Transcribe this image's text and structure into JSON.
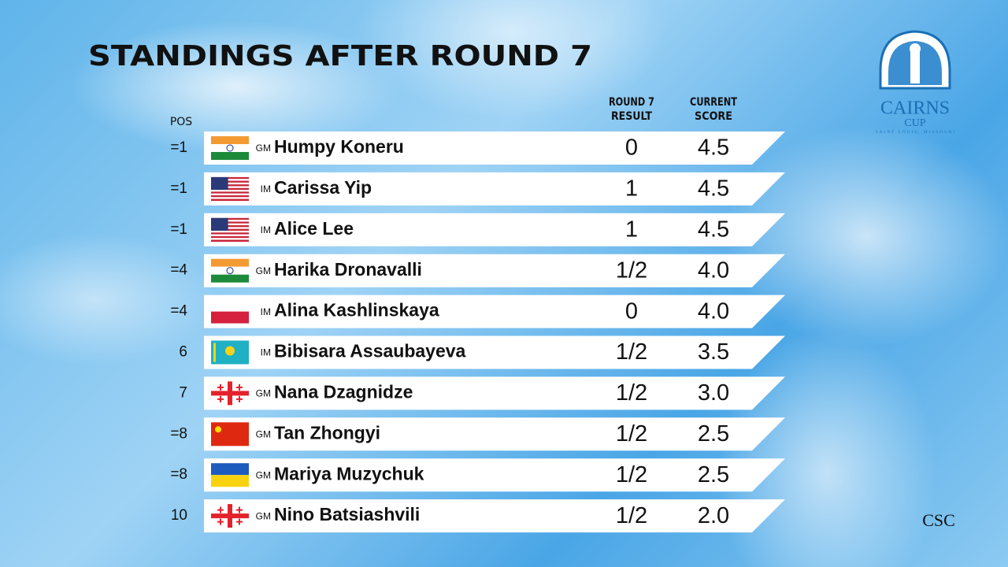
{
  "title": "STANDINGS AFTER ROUND 7",
  "columns": {
    "pos": "POS",
    "result": [
      "ROUND 7",
      "RESULT"
    ],
    "score": [
      "CURRENT",
      "SCORE"
    ]
  },
  "rows": [
    {
      "pos": "=1",
      "title": "GM",
      "name": "Humpy Koneru",
      "result": "0",
      "score": "4.5"
    },
    {
      "pos": "=1",
      "title": "IM",
      "name": "Carissa Yip",
      "result": "1",
      "score": "4.5"
    },
    {
      "pos": "=1",
      "title": "IM",
      "name": "Alice Lee",
      "result": "1",
      "score": "4.5"
    },
    {
      "pos": "=4",
      "title": "GM",
      "name": "Harika Dronavalli",
      "result": "1/2",
      "score": "4.0"
    },
    {
      "pos": "=4",
      "title": "IM",
      "name": "Alina Kashlinskaya",
      "result": "0",
      "score": "4.0"
    },
    {
      "pos": "6",
      "title": "IM",
      "name": "Bibisara Assaubayeva",
      "result": "1/2",
      "score": "3.5"
    },
    {
      "pos": "7",
      "title": "GM",
      "name": "Nana Dzagnidze",
      "result": "1/2",
      "score": "3.0"
    },
    {
      "pos": "=8",
      "title": "GM",
      "name": "Tan Zhongyi",
      "result": "1/2",
      "score": "2.5"
    },
    {
      "pos": "=8",
      "title": "GM",
      "name": "Mariya Muzychuk",
      "result": "1/2",
      "score": "2.5"
    },
    {
      "pos": "10",
      "title": "GM",
      "name": "Nino Batsiashvili",
      "result": "1/2",
      "score": "2.0"
    }
  ],
  "logo": {
    "name": "CAIRNS",
    "sub": "CUP",
    "place": "SAINT LOUIS, MISSOURI"
  },
  "club_logo": "CSC"
}
